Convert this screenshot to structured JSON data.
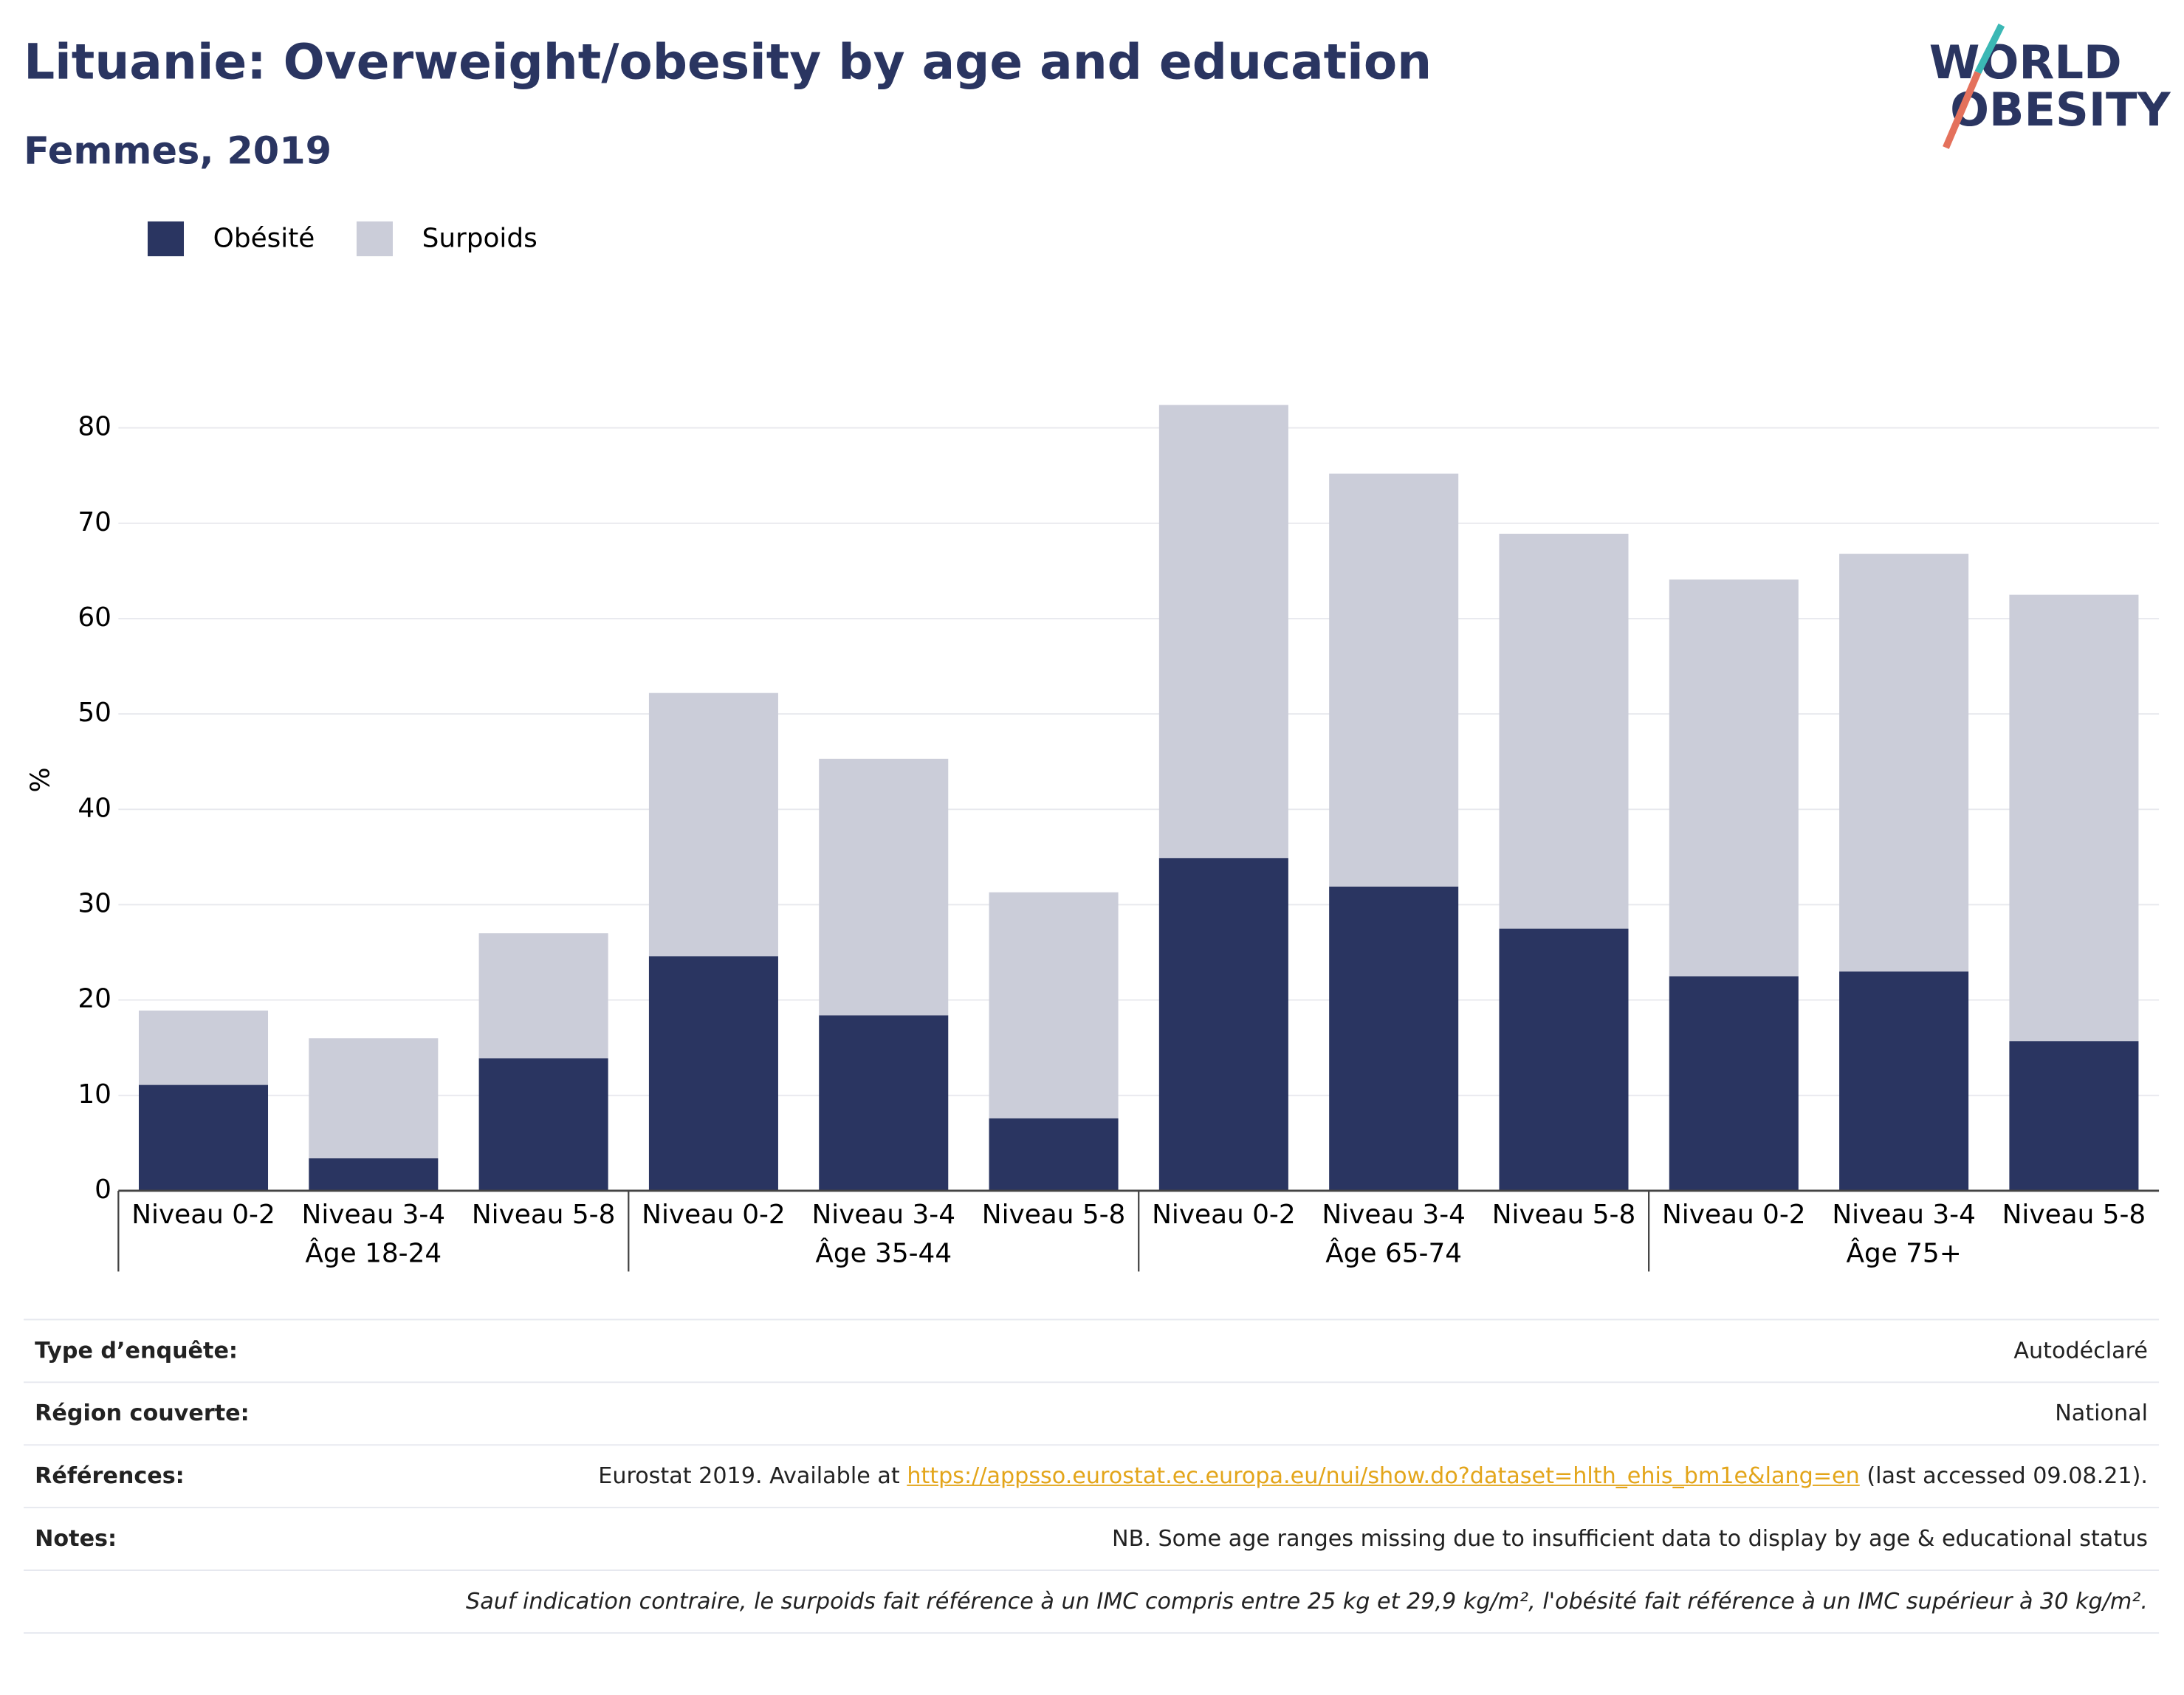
{
  "chart_data": {
    "type": "stacked_bar",
    "title": "Lituanie: Overweight/obesity by age and education",
    "subtitle": "Femmes, 2019",
    "y_label": "%",
    "categories": [
      "Niveau 0-2",
      "Niveau 3-4",
      "Niveau 5-8",
      "Niveau 0-2",
      "Niveau 3-4",
      "Niveau 5-8",
      "Niveau 0-2",
      "Niveau 3-4",
      "Niveau 5-8",
      "Niveau 0-2",
      "Niveau 3-4",
      "Niveau 5-8"
    ],
    "groups": [
      "Âge 18-24",
      "Âge 35-44",
      "Âge 65-74",
      "Âge 75+"
    ],
    "series": [
      {
        "name": "Obésité",
        "color": "#2a3561",
        "values": [
          11.1,
          3.4,
          13.9,
          24.6,
          18.4,
          7.6,
          34.9,
          31.9,
          27.5,
          22.5,
          23.0,
          15.7
        ]
      },
      {
        "name": "Surpoids",
        "color": "#cbcdd9",
        "values": [
          7.8,
          12.6,
          13.1,
          27.6,
          26.9,
          23.7,
          47.5,
          43.3,
          41.4,
          41.6,
          43.8,
          46.8
        ]
      }
    ],
    "ylim": [
      0,
      85
    ],
    "yticks": [
      0,
      10,
      20,
      30,
      40,
      50,
      60,
      70,
      80
    ],
    "grid": true,
    "legend": "top-left"
  },
  "logo": {
    "line1": "WORLD",
    "line2": "OBESITY"
  },
  "info": {
    "survey": {
      "label": "Type d’enquête:",
      "value": "Autodéclaré"
    },
    "region": {
      "label": "Région couverte:",
      "value": "National"
    },
    "references": {
      "label": "Références:",
      "text": "Eurostat 2019. Available at",
      "link": "https://appsso.eurostat.ec.europa.eu/nui/show.do?dataset=hlth_ehis_bm1e&lang=en",
      "after": "(last accessed 09.08.21)."
    },
    "notes": {
      "label": "Notes:",
      "value": "NB. Some age ranges missing due to insufficient data to display by age & educational status"
    },
    "definition": "Sauf indication contraire, le surpoids fait référence à un IMC compris entre 25 kg et 29,9 kg/m², l'obésité fait référence à un IMC supérieur à 30 kg/m²."
  }
}
